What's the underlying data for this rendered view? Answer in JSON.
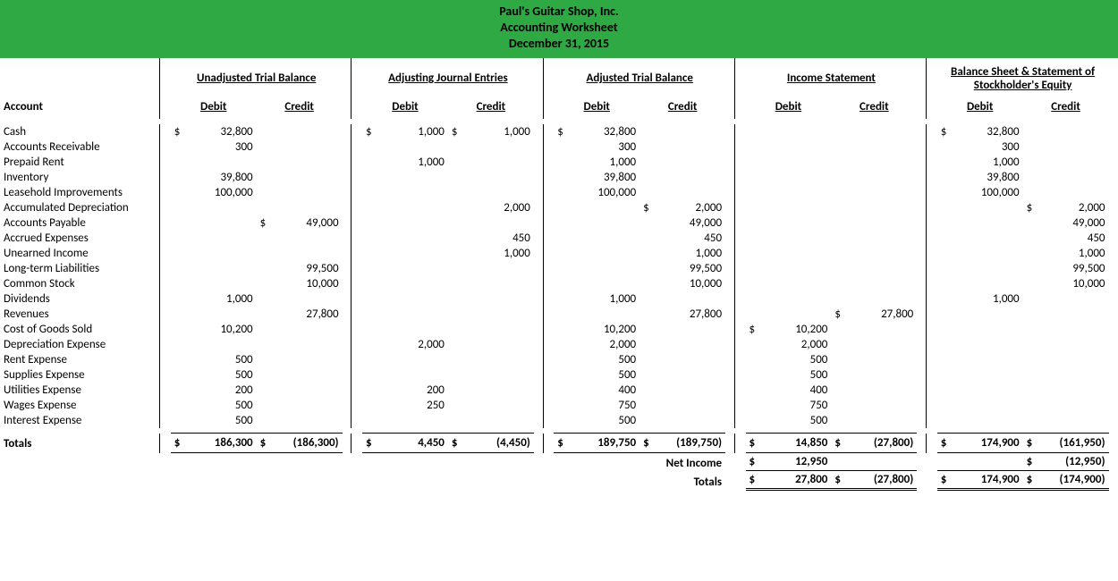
{
  "header": {
    "line1": "Paul's Guitar Shop, Inc.",
    "line2": "Accounting Worksheet",
    "line3": "December 31, 2015",
    "bg": "#2fa943"
  },
  "sections": [
    "Unadjusted Trial Balance",
    "Adjusting Journal Entries",
    "Adjusted Trial Balance",
    "Income Statement",
    "Balance Sheet & Statement of Stockholder's Equity"
  ],
  "col_labels": {
    "account": "Account",
    "debit": "Debit",
    "credit": "Credit"
  },
  "rows": [
    {
      "a": "Cash",
      "utb_d": "32,800",
      "utb_d$": true,
      "aje_d": "1,000",
      "aje_d$": true,
      "aje_c": "1,000",
      "aje_c$": true,
      "atb_d": "32,800",
      "atb_d$": true,
      "bs_d": "32,800",
      "bs_d$": true
    },
    {
      "a": "Accounts Receivable",
      "utb_d": "300",
      "atb_d": "300",
      "bs_d": "300"
    },
    {
      "a": "Prepaid Rent",
      "aje_d": "1,000",
      "atb_d": "1,000",
      "bs_d": "1,000"
    },
    {
      "a": "Inventory",
      "utb_d": "39,800",
      "atb_d": "39,800",
      "bs_d": "39,800"
    },
    {
      "a": "Leasehold Improvements",
      "utb_d": "100,000",
      "atb_d": "100,000",
      "bs_d": "100,000"
    },
    {
      "a": "Accumulated Depreciation",
      "aje_c": "2,000",
      "atb_c": "2,000",
      "atb_c$": true,
      "bs_c": "2,000",
      "bs_c$": true
    },
    {
      "a": "Accounts Payable",
      "utb_c": "49,000",
      "utb_c$": true,
      "atb_c": "49,000",
      "bs_c": "49,000"
    },
    {
      "a": "Accrued Expenses",
      "aje_c": "450",
      "atb_c": "450",
      "bs_c": "450"
    },
    {
      "a": "Unearned Income",
      "aje_c": "1,000",
      "atb_c": "1,000",
      "bs_c": "1,000"
    },
    {
      "a": "Long-term Liabilities",
      "utb_c": "99,500",
      "atb_c": "99,500",
      "bs_c": "99,500"
    },
    {
      "a": "Common Stock",
      "utb_c": "10,000",
      "atb_c": "10,000",
      "bs_c": "10,000"
    },
    {
      "a": "Dividends",
      "utb_d": "1,000",
      "atb_d": "1,000",
      "bs_d": "1,000"
    },
    {
      "a": "Revenues",
      "utb_c": "27,800",
      "atb_c": "27,800",
      "is_c": "27,800",
      "is_c$": true
    },
    {
      "a": "Cost of Goods Sold",
      "utb_d": "10,200",
      "atb_d": "10,200",
      "is_d": "10,200",
      "is_d$": true
    },
    {
      "a": "Depreciation Expense",
      "aje_d": "2,000",
      "atb_d": "2,000",
      "is_d": "2,000"
    },
    {
      "a": "Rent Expense",
      "utb_d": "500",
      "atb_d": "500",
      "is_d": "500"
    },
    {
      "a": "Supplies Expense",
      "utb_d": "500",
      "atb_d": "500",
      "is_d": "500"
    },
    {
      "a": "Utilities Expense",
      "utb_d": "200",
      "aje_d": "200",
      "atb_d": "400",
      "is_d": "400"
    },
    {
      "a": "Wages Expense",
      "utb_d": "500",
      "aje_d": "250",
      "atb_d": "750",
      "is_d": "750"
    },
    {
      "a": "Interest Expense",
      "utb_d": "500",
      "atb_d": "500",
      "is_d": "500"
    }
  ],
  "totals": {
    "label": "Totals",
    "utb_d": "186,300",
    "utb_c": "(186,300)",
    "aje_d": "4,450",
    "aje_c": "(4,450)",
    "atb_d": "189,750",
    "atb_c": "(189,750)",
    "is_d": "14,850",
    "is_c": "(27,800)",
    "bs_d": "174,900",
    "bs_c": "(161,950)"
  },
  "netincome": {
    "label": "Net Income",
    "is_d": "12,950",
    "bs_c": "(12,950)"
  },
  "totals2": {
    "label": "Totals",
    "is_d": "27,800",
    "is_c": "(27,800)",
    "bs_d": "174,900",
    "bs_c": "(174,900)"
  }
}
